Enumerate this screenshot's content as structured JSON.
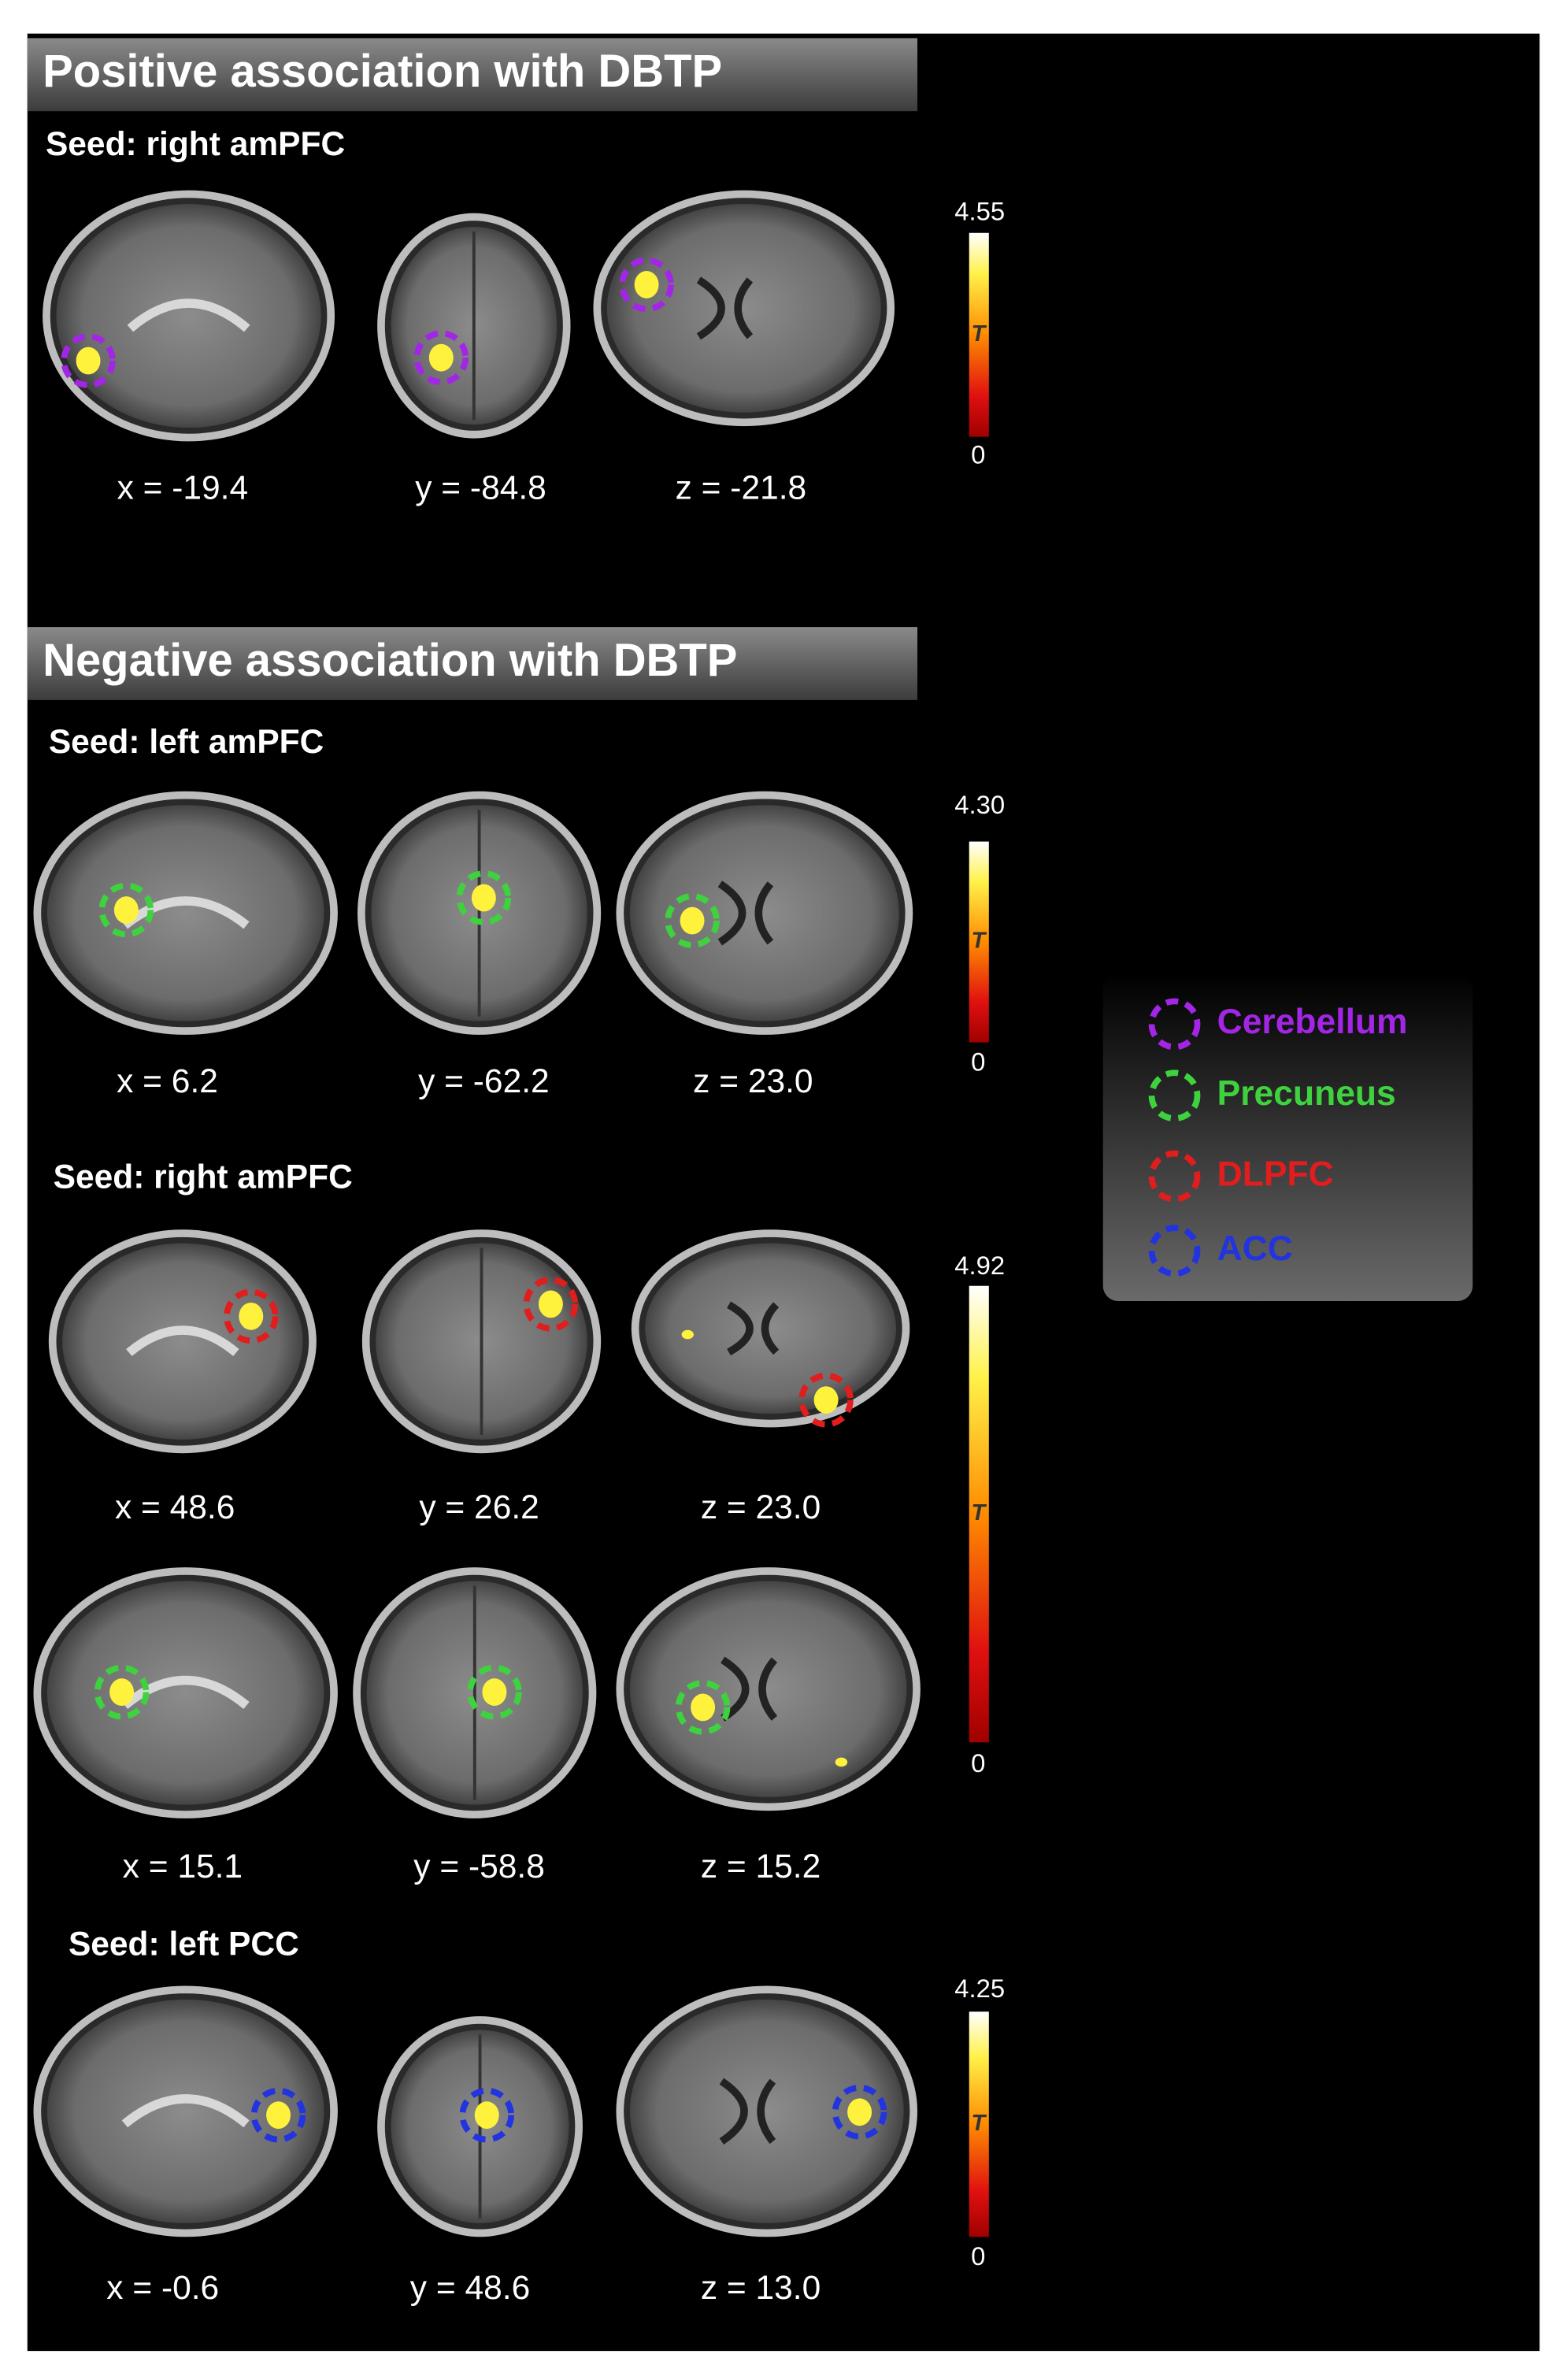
{
  "sections": [
    {
      "title": "Positive association with DBTP",
      "seeds": [
        {
          "label": "Seed: right amPFC",
          "rows": [
            {
              "coords": [
                "x = -19.4",
                "y = -84.8",
                "z = -21.8"
              ]
            }
          ],
          "colorbar": {
            "max": "4.55",
            "min": "0",
            "label": "T"
          }
        }
      ]
    },
    {
      "title": "Negative association with DBTP",
      "seeds": [
        {
          "label": "Seed: left amPFC",
          "rows": [
            {
              "coords": [
                "x = 6.2",
                "y = -62.2",
                "z = 23.0"
              ]
            }
          ],
          "colorbar": {
            "max": "4.30",
            "min": "0",
            "label": "T"
          }
        },
        {
          "label": "Seed: right amPFC",
          "rows": [
            {
              "coords": [
                "x = 48.6",
                "y = 26.2",
                "z = 23.0"
              ]
            },
            {
              "coords": [
                "x = 15.1",
                "y = -58.8",
                "z = 15.2"
              ]
            }
          ],
          "colorbar": {
            "max": "4.92",
            "min": "0",
            "label": "T"
          }
        },
        {
          "label": "Seed: left PCC",
          "rows": [
            {
              "coords": [
                "x = -0.6",
                "y = 48.6",
                "z = 13.0"
              ]
            }
          ],
          "colorbar": {
            "max": "4.25",
            "min": "0",
            "label": "T"
          }
        }
      ]
    }
  ],
  "legend": [
    {
      "label": "Cerebellum",
      "color": "#a326e6"
    },
    {
      "label": "Precuneus",
      "color": "#3fd23f"
    },
    {
      "label": "DLPFC",
      "color": "#e11d1d"
    },
    {
      "label": "ACC",
      "color": "#2233e0"
    }
  ]
}
